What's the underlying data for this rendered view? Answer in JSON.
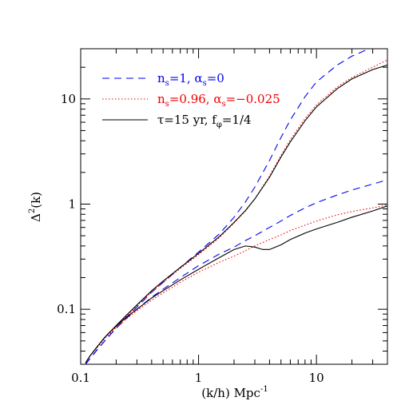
{
  "chart_data": {
    "type": "line",
    "xlabel": "(k/h) Mpc",
    "xlabel_sup": "-1",
    "ylabel_base": "Δ",
    "ylabel_sup": "2",
    "ylabel_tail": "(k)",
    "x_scale": "log",
    "y_scale": "log",
    "xlim": [
      0.1,
      40
    ],
    "ylim": [
      0.03,
      30
    ],
    "grid": false,
    "legend_position": "top-left",
    "xticks": [
      {
        "value": 0.1,
        "label": "0.1"
      },
      {
        "value": 1,
        "label": "1"
      },
      {
        "value": 10,
        "label": "10"
      }
    ],
    "yticks": [
      {
        "value": 0.1,
        "label": "0.1"
      },
      {
        "value": 1,
        "label": "1"
      },
      {
        "value": 10,
        "label": "10"
      }
    ],
    "legend": [
      {
        "parts": [
          {
            "t": "n",
            "sub": false
          },
          {
            "t": "s",
            "sub": true
          },
          {
            "t": "=1, α",
            "sub": false
          },
          {
            "t": "s",
            "sub": true
          },
          {
            "t": "=0",
            "sub": false
          }
        ]
      },
      {
        "parts": [
          {
            "t": "n",
            "sub": false
          },
          {
            "t": "s",
            "sub": true
          },
          {
            "t": "=0.96, α",
            "sub": false
          },
          {
            "t": "s",
            "sub": true
          },
          {
            "t": "=−0.025",
            "sub": false
          }
        ]
      },
      {
        "parts": [
          {
            "t": "τ=15 yr, f",
            "sub": false
          },
          {
            "t": "φ",
            "sub": true
          },
          {
            "t": "=1/4",
            "sub": false
          }
        ]
      }
    ],
    "series": [
      {
        "style": "dashed",
        "color": "#0000ee",
        "group": 0,
        "x": [
          0.11,
          0.12,
          0.14,
          0.16,
          0.18,
          0.2,
          0.25,
          0.3,
          0.4,
          0.5,
          0.7,
          1.0,
          1.5,
          2.0,
          2.5,
          3.0,
          4.0,
          5.0,
          6.0,
          8.0,
          10,
          15,
          20,
          30,
          40
        ],
        "y": [
          0.03,
          0.034,
          0.042,
          0.05,
          0.058,
          0.066,
          0.085,
          0.105,
          0.145,
          0.18,
          0.25,
          0.35,
          0.52,
          0.75,
          1.05,
          1.45,
          2.6,
          4.3,
          6.3,
          10.5,
          14.5,
          21,
          25.5,
          31,
          35
        ]
      },
      {
        "style": "dotted",
        "color": "#ee0000",
        "group": 0,
        "x": [
          0.11,
          0.12,
          0.14,
          0.16,
          0.18,
          0.2,
          0.25,
          0.3,
          0.4,
          0.5,
          0.7,
          1.0,
          1.5,
          2.0,
          2.5,
          3.0,
          4.0,
          5.0,
          6.0,
          8.0,
          10,
          15,
          20,
          30,
          40
        ],
        "y": [
          0.031,
          0.036,
          0.044,
          0.053,
          0.061,
          0.069,
          0.088,
          0.108,
          0.146,
          0.18,
          0.245,
          0.33,
          0.48,
          0.66,
          0.86,
          1.12,
          1.85,
          2.9,
          4.1,
          6.5,
          8.8,
          13,
          16,
          20,
          23.5
        ]
      },
      {
        "style": "solid",
        "color": "#000000",
        "group": 0,
        "x": [
          0.11,
          0.12,
          0.14,
          0.16,
          0.18,
          0.2,
          0.25,
          0.3,
          0.4,
          0.5,
          0.7,
          1.0,
          1.5,
          2.0,
          2.5,
          3.0,
          4.0,
          5.0,
          6.0,
          8.0,
          10,
          15,
          20,
          30,
          40
        ],
        "y": [
          0.031,
          0.036,
          0.045,
          0.054,
          0.062,
          0.07,
          0.09,
          0.11,
          0.15,
          0.185,
          0.25,
          0.34,
          0.49,
          0.67,
          0.87,
          1.12,
          1.8,
          2.8,
          3.9,
          6.2,
          8.4,
          12.5,
          15.5,
          19,
          21
        ]
      },
      {
        "style": "dashed",
        "color": "#0000ee",
        "group": 1,
        "x": [
          0.11,
          0.12,
          0.14,
          0.16,
          0.18,
          0.2,
          0.25,
          0.3,
          0.4,
          0.5,
          0.7,
          1.0,
          1.5,
          2.0,
          2.5,
          3.0,
          4.0,
          5.0,
          6.0,
          8.0,
          10,
          15,
          20,
          30,
          40
        ],
        "y": [
          0.03,
          0.034,
          0.042,
          0.05,
          0.058,
          0.066,
          0.084,
          0.1,
          0.13,
          0.155,
          0.2,
          0.26,
          0.335,
          0.39,
          0.45,
          0.5,
          0.6,
          0.69,
          0.78,
          0.92,
          1.03,
          1.22,
          1.36,
          1.55,
          1.7
        ]
      },
      {
        "style": "dotted",
        "color": "#ee0000",
        "group": 1,
        "x": [
          0.11,
          0.12,
          0.14,
          0.16,
          0.18,
          0.2,
          0.25,
          0.3,
          0.4,
          0.5,
          0.7,
          1.0,
          1.5,
          2.0,
          2.5,
          3.0,
          4.0,
          5.0,
          6.0,
          8.0,
          10,
          15,
          20,
          30,
          40
        ],
        "y": [
          0.031,
          0.036,
          0.044,
          0.053,
          0.06,
          0.067,
          0.083,
          0.097,
          0.122,
          0.143,
          0.18,
          0.225,
          0.28,
          0.32,
          0.36,
          0.4,
          0.46,
          0.51,
          0.56,
          0.63,
          0.69,
          0.79,
          0.85,
          0.92,
          0.98
        ]
      },
      {
        "style": "solid",
        "color": "#000000",
        "group": 1,
        "x": [
          0.11,
          0.12,
          0.14,
          0.16,
          0.18,
          0.2,
          0.25,
          0.3,
          0.4,
          0.5,
          0.7,
          1.0,
          1.5,
          2.0,
          2.5,
          3.0,
          3.5,
          4.0,
          5.0,
          6.0,
          8.0,
          10,
          15,
          20,
          30,
          40
        ],
        "y": [
          0.031,
          0.036,
          0.045,
          0.054,
          0.062,
          0.069,
          0.086,
          0.1,
          0.128,
          0.15,
          0.19,
          0.24,
          0.31,
          0.37,
          0.4,
          0.39,
          0.37,
          0.37,
          0.41,
          0.46,
          0.53,
          0.58,
          0.67,
          0.75,
          0.86,
          0.96
        ]
      }
    ]
  }
}
